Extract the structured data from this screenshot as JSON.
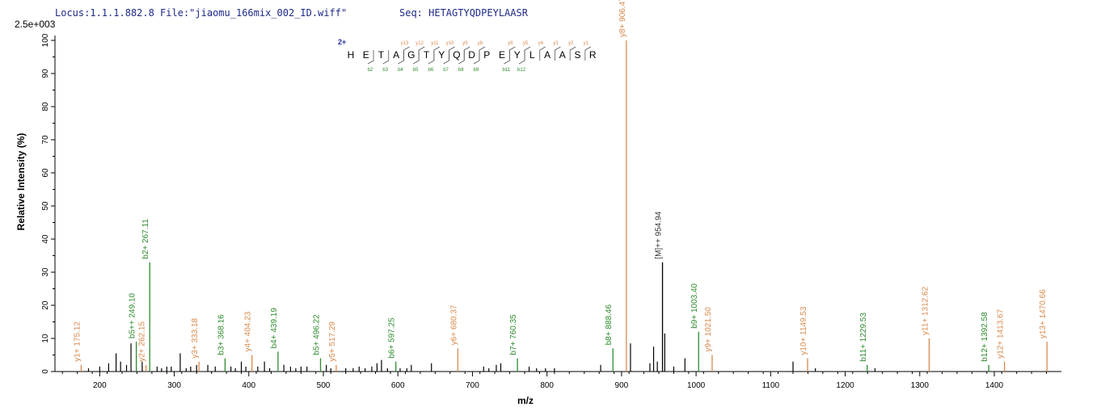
{
  "header": {
    "locus": "Locus:1.1.1.882.8 File:\"jiaomu_166mix_002_ID.wiff\"",
    "seq": "Seq: HETAGTYQDPEYLAASR",
    "scale": "2.5e+003"
  },
  "colors": {
    "b_ion": "#2e8b2e",
    "y_ion": "#d98a4e",
    "other": "#000000",
    "header": "#1f2a8a",
    "charge": "#1f2aa0"
  },
  "fragment_map": {
    "charge": "2+",
    "residues": [
      "H",
      "E",
      "T",
      "A",
      "G",
      "T",
      "Y",
      "Q",
      "D",
      "P",
      "E",
      "Y",
      "L",
      "A",
      "A",
      "S",
      "R"
    ],
    "y_labels": [
      "y13",
      "y12",
      "y11",
      "y10",
      "y9",
      "y8",
      "y6",
      "y5",
      "y4",
      "y3",
      "y2",
      "y1"
    ],
    "y_positions": [
      4,
      5,
      6,
      7,
      8,
      9,
      11,
      12,
      13,
      14,
      15,
      16
    ],
    "b_labels": [
      "b2",
      "b3",
      "b4",
      "b5",
      "b6",
      "b7",
      "b8",
      "b9",
      "b11",
      "b12"
    ],
    "b_positions": [
      1,
      2,
      3,
      4,
      5,
      6,
      7,
      8,
      10,
      11
    ]
  },
  "chart_data": {
    "type": "bar",
    "xlabel": "m/z",
    "ylabel": "Relative   Intensity (%)",
    "xlim": [
      140,
      1490
    ],
    "ylim": [
      0,
      100
    ],
    "x_ticks": [
      200,
      300,
      400,
      500,
      600,
      700,
      800,
      900,
      1000,
      1100,
      1200,
      1300,
      1400
    ],
    "y_ticks": [
      0,
      10,
      20,
      30,
      40,
      50,
      60,
      70,
      80,
      90,
      100
    ],
    "labeled_peaks": [
      {
        "mz": 175.12,
        "intensity": 2,
        "label": "y1+ 175.12",
        "ion": "y"
      },
      {
        "mz": 249.1,
        "intensity": 9,
        "label": "b5++ 249.10",
        "ion": "b"
      },
      {
        "mz": 262.15,
        "intensity": 2,
        "label": "y2+ 262.15",
        "ion": "y"
      },
      {
        "mz": 267.11,
        "intensity": 33,
        "label": "b2+ 267.11",
        "ion": "b"
      },
      {
        "mz": 333.18,
        "intensity": 3,
        "label": "y3+ 333.18",
        "ion": "y"
      },
      {
        "mz": 368.16,
        "intensity": 4,
        "label": "b3+ 368.16",
        "ion": "b"
      },
      {
        "mz": 404.23,
        "intensity": 5,
        "label": "y4+ 404.23",
        "ion": "y"
      },
      {
        "mz": 439.19,
        "intensity": 6,
        "label": "b4+ 439.19",
        "ion": "b"
      },
      {
        "mz": 496.22,
        "intensity": 4,
        "label": "b5+ 496.22",
        "ion": "b"
      },
      {
        "mz": 517.29,
        "intensity": 2,
        "label": "y5+ 517.29",
        "ion": "y"
      },
      {
        "mz": 597.25,
        "intensity": 3,
        "label": "b6+ 597.25",
        "ion": "b"
      },
      {
        "mz": 680.37,
        "intensity": 7,
        "label": "y6+ 680.37",
        "ion": "y"
      },
      {
        "mz": 760.35,
        "intensity": 4,
        "label": "b7+ 760.35",
        "ion": "b"
      },
      {
        "mz": 888.46,
        "intensity": 7,
        "label": "b8+ 888.46",
        "ion": "b"
      },
      {
        "mz": 906.47,
        "intensity": 100,
        "label": "y8+ 906.47",
        "ion": "y"
      },
      {
        "mz": 954.94,
        "intensity": 33,
        "label": "[M]++ 954.94",
        "ion": "other"
      },
      {
        "mz": 1003.4,
        "intensity": 12,
        "label": "b9+ 1003.40",
        "ion": "b"
      },
      {
        "mz": 1021.5,
        "intensity": 5,
        "label": "y9+ 1021.50",
        "ion": "y"
      },
      {
        "mz": 1149.53,
        "intensity": 4,
        "label": "y10+ 1149.53",
        "ion": "y"
      },
      {
        "mz": 1229.53,
        "intensity": 2,
        "label": "b11+ 1229.53",
        "ion": "b"
      },
      {
        "mz": 1312.62,
        "intensity": 10,
        "label": "y11+ 1312.62",
        "ion": "y"
      },
      {
        "mz": 1392.58,
        "intensity": 2,
        "label": "b12+ 1392.58",
        "ion": "b"
      },
      {
        "mz": 1413.67,
        "intensity": 3,
        "label": "y12+ 1413.67",
        "ion": "y"
      },
      {
        "mz": 1470.66,
        "intensity": 9,
        "label": "y13+ 1470.66",
        "ion": "y"
      }
    ],
    "unlabeled_peaks": [
      {
        "mz": 185,
        "intensity": 1
      },
      {
        "mz": 200,
        "intensity": 1.5
      },
      {
        "mz": 212,
        "intensity": 2.5
      },
      {
        "mz": 222,
        "intensity": 5.5
      },
      {
        "mz": 228,
        "intensity": 3
      },
      {
        "mz": 236,
        "intensity": 2
      },
      {
        "mz": 242,
        "intensity": 8.5
      },
      {
        "mz": 257,
        "intensity": 3
      },
      {
        "mz": 277,
        "intensity": 1.5
      },
      {
        "mz": 283,
        "intensity": 1
      },
      {
        "mz": 290,
        "intensity": 1.5
      },
      {
        "mz": 296,
        "intensity": 1.5
      },
      {
        "mz": 308,
        "intensity": 5.5
      },
      {
        "mz": 316,
        "intensity": 1
      },
      {
        "mz": 322,
        "intensity": 1.5
      },
      {
        "mz": 330,
        "intensity": 2
      },
      {
        "mz": 345,
        "intensity": 2
      },
      {
        "mz": 355,
        "intensity": 1.5
      },
      {
        "mz": 376,
        "intensity": 1.5
      },
      {
        "mz": 382,
        "intensity": 1
      },
      {
        "mz": 390,
        "intensity": 3
      },
      {
        "mz": 396,
        "intensity": 1.5
      },
      {
        "mz": 412,
        "intensity": 1.5
      },
      {
        "mz": 421,
        "intensity": 3
      },
      {
        "mz": 428,
        "intensity": 1
      },
      {
        "mz": 447,
        "intensity": 2
      },
      {
        "mz": 456,
        "intensity": 1.5
      },
      {
        "mz": 463,
        "intensity": 1
      },
      {
        "mz": 470,
        "intensity": 1.5
      },
      {
        "mz": 478,
        "intensity": 1.5
      },
      {
        "mz": 504,
        "intensity": 2
      },
      {
        "mz": 510,
        "intensity": 1
      },
      {
        "mz": 530,
        "intensity": 1
      },
      {
        "mz": 540,
        "intensity": 1
      },
      {
        "mz": 548,
        "intensity": 1.5
      },
      {
        "mz": 556,
        "intensity": 1
      },
      {
        "mz": 565,
        "intensity": 1.5
      },
      {
        "mz": 572,
        "intensity": 2.5
      },
      {
        "mz": 578,
        "intensity": 3.5
      },
      {
        "mz": 586,
        "intensity": 1
      },
      {
        "mz": 603,
        "intensity": 1
      },
      {
        "mz": 612,
        "intensity": 1
      },
      {
        "mz": 618,
        "intensity": 2
      },
      {
        "mz": 645,
        "intensity": 2.5
      },
      {
        "mz": 715,
        "intensity": 1.5
      },
      {
        "mz": 722,
        "intensity": 1
      },
      {
        "mz": 732,
        "intensity": 2
      },
      {
        "mz": 738,
        "intensity": 2.5
      },
      {
        "mz": 776,
        "intensity": 1.5
      },
      {
        "mz": 786,
        "intensity": 1
      },
      {
        "mz": 798,
        "intensity": 1
      },
      {
        "mz": 810,
        "intensity": 1
      },
      {
        "mz": 872,
        "intensity": 2
      },
      {
        "mz": 912,
        "intensity": 8.5
      },
      {
        "mz": 938,
        "intensity": 2.5
      },
      {
        "mz": 943,
        "intensity": 7.5
      },
      {
        "mz": 948,
        "intensity": 3
      },
      {
        "mz": 958,
        "intensity": 11.5
      },
      {
        "mz": 970,
        "intensity": 1.5
      },
      {
        "mz": 985,
        "intensity": 4
      },
      {
        "mz": 1130,
        "intensity": 3
      },
      {
        "mz": 1160,
        "intensity": 1
      },
      {
        "mz": 1240,
        "intensity": 1
      }
    ]
  }
}
